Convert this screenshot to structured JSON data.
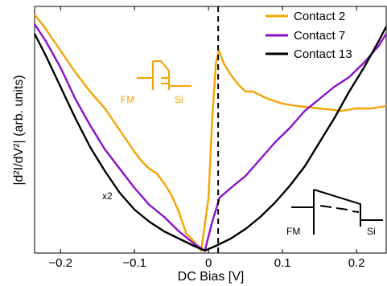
{
  "chart_data": {
    "type": "line",
    "xlabel": "DC Bias [V]",
    "ylabel": "|d²I/dV²| (arb. units)",
    "xlim": [
      -0.235,
      0.24
    ],
    "ylim": [
      0,
      1
    ],
    "grid": false,
    "x_ticks": [
      -0.2,
      -0.1,
      0,
      0.1,
      0.2
    ],
    "x_tick_labels": [
      "−0.2",
      "−0.1",
      "0",
      "0.1",
      "0.2"
    ],
    "legend_position": "top-right",
    "vline_x": 0.013,
    "series": [
      {
        "name": "Contact 2",
        "color": "#f5a300",
        "points": [
          [
            -0.235,
            0.98
          ],
          [
            -0.22,
            0.92
          ],
          [
            -0.2,
            0.83
          ],
          [
            -0.18,
            0.74
          ],
          [
            -0.16,
            0.66
          ],
          [
            -0.14,
            0.59
          ],
          [
            -0.12,
            0.5
          ],
          [
            -0.1,
            0.41
          ],
          [
            -0.09,
            0.37
          ],
          [
            -0.08,
            0.34
          ],
          [
            -0.07,
            0.32
          ],
          [
            -0.06,
            0.28
          ],
          [
            -0.05,
            0.23
          ],
          [
            -0.04,
            0.16
          ],
          [
            -0.03,
            0.07
          ],
          [
            -0.02,
            0.04
          ],
          [
            -0.01,
            0.0
          ],
          [
            0.0,
            0.22
          ],
          [
            0.005,
            0.55
          ],
          [
            0.01,
            0.78
          ],
          [
            0.014,
            0.83
          ],
          [
            0.02,
            0.78
          ],
          [
            0.03,
            0.73
          ],
          [
            0.04,
            0.69
          ],
          [
            0.05,
            0.66
          ],
          [
            0.06,
            0.66
          ],
          [
            0.08,
            0.63
          ],
          [
            0.1,
            0.61
          ],
          [
            0.12,
            0.6
          ],
          [
            0.15,
            0.59
          ],
          [
            0.18,
            0.58
          ],
          [
            0.2,
            0.59
          ],
          [
            0.22,
            0.59
          ],
          [
            0.24,
            0.6
          ]
        ]
      },
      {
        "name": "Contact 7",
        "color": "#8a10cc",
        "points": [
          [
            -0.235,
            0.94
          ],
          [
            -0.22,
            0.87
          ],
          [
            -0.2,
            0.76
          ],
          [
            -0.18,
            0.63
          ],
          [
            -0.16,
            0.52
          ],
          [
            -0.14,
            0.42
          ],
          [
            -0.12,
            0.34
          ],
          [
            -0.1,
            0.26
          ],
          [
            -0.08,
            0.19
          ],
          [
            -0.06,
            0.14
          ],
          [
            -0.04,
            0.08
          ],
          [
            -0.02,
            0.03
          ],
          [
            -0.005,
            0.0
          ],
          [
            0.005,
            0.12
          ],
          [
            0.015,
            0.22
          ],
          [
            0.03,
            0.26
          ],
          [
            0.05,
            0.31
          ],
          [
            0.07,
            0.38
          ],
          [
            0.09,
            0.45
          ],
          [
            0.11,
            0.51
          ],
          [
            0.13,
            0.58
          ],
          [
            0.15,
            0.63
          ],
          [
            0.17,
            0.68
          ],
          [
            0.19,
            0.72
          ],
          [
            0.21,
            0.78
          ],
          [
            0.23,
            0.85
          ],
          [
            0.24,
            0.9
          ]
        ]
      },
      {
        "name": "Contact 13",
        "color": "#000000",
        "points": [
          [
            -0.235,
            0.9
          ],
          [
            -0.22,
            0.81
          ],
          [
            -0.2,
            0.68
          ],
          [
            -0.18,
            0.55
          ],
          [
            -0.16,
            0.43
          ],
          [
            -0.14,
            0.33
          ],
          [
            -0.12,
            0.24
          ],
          [
            -0.1,
            0.17
          ],
          [
            -0.08,
            0.12
          ],
          [
            -0.06,
            0.08
          ],
          [
            -0.04,
            0.05
          ],
          [
            -0.02,
            0.02
          ],
          [
            -0.005,
            0.0
          ],
          [
            0.01,
            0.02
          ],
          [
            0.03,
            0.05
          ],
          [
            0.05,
            0.09
          ],
          [
            0.07,
            0.14
          ],
          [
            0.09,
            0.2
          ],
          [
            0.11,
            0.27
          ],
          [
            0.13,
            0.35
          ],
          [
            0.15,
            0.45
          ],
          [
            0.17,
            0.55
          ],
          [
            0.19,
            0.66
          ],
          [
            0.21,
            0.76
          ],
          [
            0.23,
            0.87
          ],
          [
            0.24,
            0.93
          ]
        ]
      }
    ],
    "annotations": {
      "scale_note": "x2",
      "inset_orange_left": "FM",
      "inset_orange_right": "Si",
      "inset_black_left": "FM",
      "inset_black_right": "Si"
    }
  }
}
